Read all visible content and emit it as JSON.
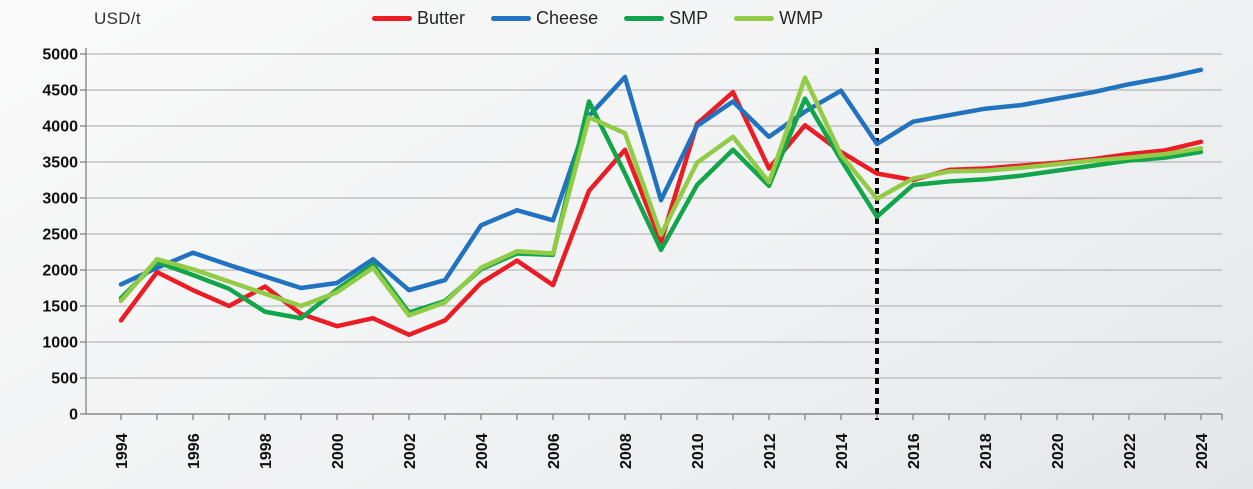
{
  "unit_label": "USD/t",
  "legend": {
    "items": [
      {
        "label": "Butter",
        "color": "#EC1C24"
      },
      {
        "label": "Cheese",
        "color": "#2173C2"
      },
      {
        "label": "SMP",
        "color": "#12A54B"
      },
      {
        "label": "WMP",
        "color": "#92CB45"
      }
    ]
  },
  "chart_data": {
    "type": "line",
    "title": "",
    "ylabel": "USD/t",
    "xlabel": "",
    "grid": true,
    "legend_position": "top",
    "ylim": [
      0,
      5000
    ],
    "yticks": [
      0,
      500,
      1000,
      1500,
      2000,
      2500,
      3000,
      3500,
      4000,
      4500,
      5000
    ],
    "x": [
      1994,
      1995,
      1996,
      1997,
      1998,
      1999,
      2000,
      2001,
      2002,
      2003,
      2004,
      2005,
      2006,
      2007,
      2008,
      2009,
      2010,
      2011,
      2012,
      2013,
      2014,
      2015,
      2016,
      2017,
      2018,
      2019,
      2020,
      2021,
      2022,
      2023,
      2024
    ],
    "xtick_labels": [
      1994,
      1996,
      1998,
      2000,
      2002,
      2004,
      2006,
      2008,
      2010,
      2012,
      2014,
      2016,
      2018,
      2020,
      2022,
      2024
    ],
    "series": [
      {
        "name": "Butter",
        "color": "#EC1C24",
        "values": [
          1300,
          1970,
          1720,
          1500,
          1770,
          1390,
          1220,
          1330,
          1100,
          1300,
          1820,
          2130,
          1790,
          3100,
          3670,
          2390,
          4030,
          4470,
          3410,
          4010,
          3640,
          3340,
          3250,
          3390,
          3410,
          3450,
          3490,
          3540,
          3610,
          3660,
          3780
        ]
      },
      {
        "name": "Cheese",
        "color": "#2173C2",
        "values": [
          1800,
          2030,
          2240,
          2070,
          1910,
          1750,
          1820,
          2150,
          1720,
          1860,
          2620,
          2830,
          2690,
          4140,
          4680,
          2970,
          4000,
          4340,
          3850,
          4200,
          4490,
          3750,
          4060,
          4150,
          4240,
          4290,
          4380,
          4470,
          4580,
          4670,
          4780
        ]
      },
      {
        "name": "SMP",
        "color": "#12A54B",
        "values": [
          1610,
          2110,
          1930,
          1740,
          1420,
          1330,
          1730,
          2080,
          1410,
          1570,
          2010,
          2230,
          2210,
          4340,
          3340,
          2280,
          3180,
          3670,
          3170,
          4380,
          3530,
          2740,
          3180,
          3230,
          3260,
          3310,
          3380,
          3450,
          3520,
          3560,
          3640
        ]
      },
      {
        "name": "WMP",
        "color": "#92CB45",
        "values": [
          1570,
          2150,
          2010,
          1840,
          1670,
          1500,
          1690,
          2030,
          1370,
          1550,
          2030,
          2260,
          2230,
          4120,
          3900,
          2490,
          3490,
          3850,
          3220,
          4670,
          3600,
          2990,
          3270,
          3370,
          3380,
          3420,
          3470,
          3520,
          3560,
          3610,
          3690
        ]
      }
    ],
    "annotations": [
      {
        "type": "vline",
        "x": 2015,
        "style": "dashed",
        "color": "#000000",
        "meaning": "historical-projection divider"
      }
    ]
  }
}
